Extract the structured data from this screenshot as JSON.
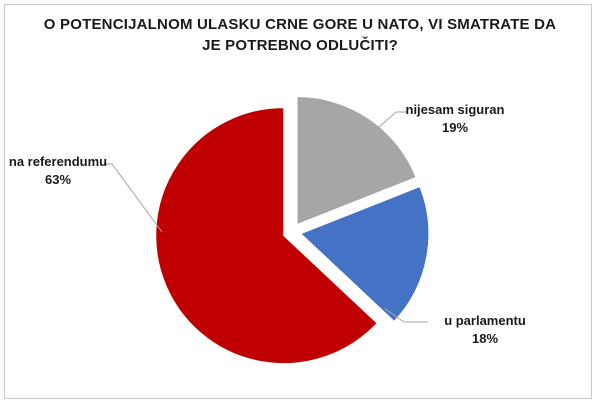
{
  "chart_data": {
    "type": "pie",
    "title_lines": [
      "O POTENCIJALNOM ULASKU CRNE GORE U NATO, VI SMATRATE DA",
      "JE POTREBNO ODLUČITI?"
    ],
    "slices": [
      {
        "label": "nijesam siguran",
        "value": 19,
        "percent_label": "19%",
        "color": "#a6a6a6"
      },
      {
        "label": "u parlamentu",
        "value": 18,
        "percent_label": "18%",
        "color": "#4472c4"
      },
      {
        "label": "na referendumu",
        "value": 63,
        "percent_label": "63%",
        "color": "#c00000"
      }
    ],
    "legend": "none"
  }
}
